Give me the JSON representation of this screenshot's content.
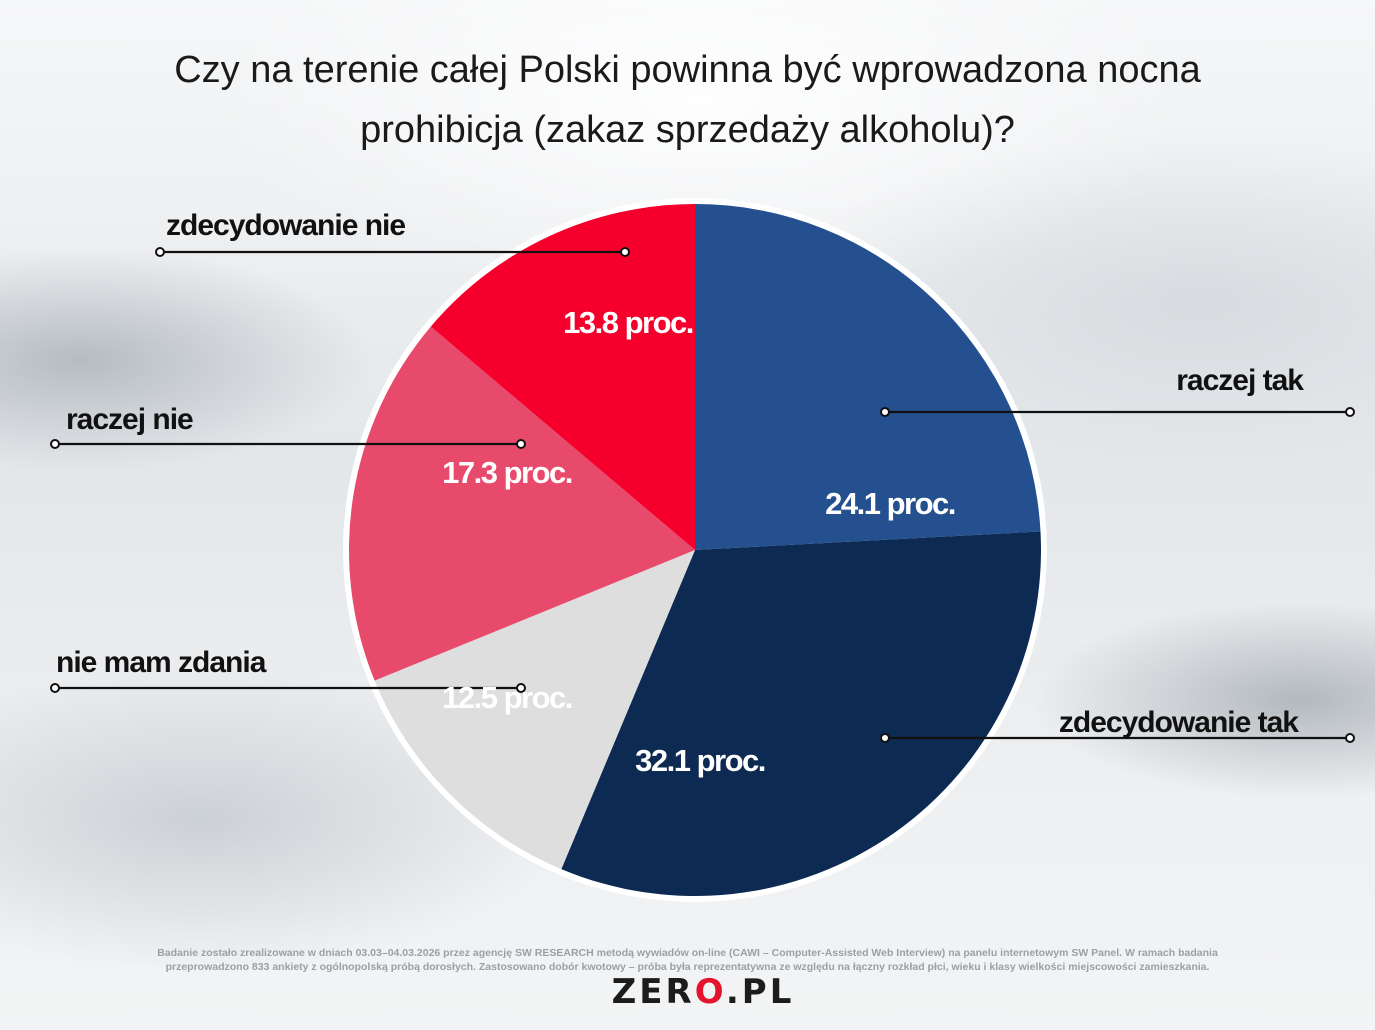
{
  "title_lines": [
    "Czy na terenie całej Polski powinna być wprowadzona nocna",
    "prohibicja (zakaz sprzedaży alkoholu)?"
  ],
  "chart_data": {
    "type": "pie",
    "title": "Czy na terenie całej Polski powinna być wprowadzona nocna prohibicja (zakaz sprzedaży alkoholu)?",
    "start_angle_deg": 0,
    "direction": "clockwise",
    "slices": [
      {
        "label": "raczej tak",
        "value": 24.1,
        "value_label": "24.1 proc.",
        "color": "#24508f",
        "text_color": "#ffffff"
      },
      {
        "label": "zdecydowanie tak",
        "value": 32.1,
        "value_label": "32.1 proc.",
        "color": "#0c2a52",
        "text_color": "#ffffff"
      },
      {
        "label": "nie mam zdania",
        "value": 12.5,
        "value_label": "12.5 proc.",
        "color": "#dedede",
        "text_color": "#ffffff"
      },
      {
        "label": "raczej nie",
        "value": 17.3,
        "value_label": "17.3 proc.",
        "color": "#e84a6c",
        "text_color": "#ffffff"
      },
      {
        "label": "zdecydowanie nie",
        "value": 13.8,
        "value_label": "13.8 proc.",
        "color": "#f5002c",
        "text_color": "#ffffff"
      }
    ]
  },
  "footnote_lines": [
    "Badanie zostało zrealizowane w dniach 03.03–04.03.2026 przez agencję SW RESEARCH metodą wywiadów on-line (CAWI – Computer-Assisted Web Interview) na panelu internetowym SW Panel. W ramach badania",
    "przeprowadzono 833 ankiety z ogólnopolską próbą dorosłych. Zastosowano dobór kwotowy – próba była reprezentatywna ze względu na łączny rozkład płci, wieku i klasy wielkości miejscowości zamieszkania."
  ],
  "logo": {
    "pre": "ZER",
    "dot": "O",
    "post": ".PL"
  }
}
